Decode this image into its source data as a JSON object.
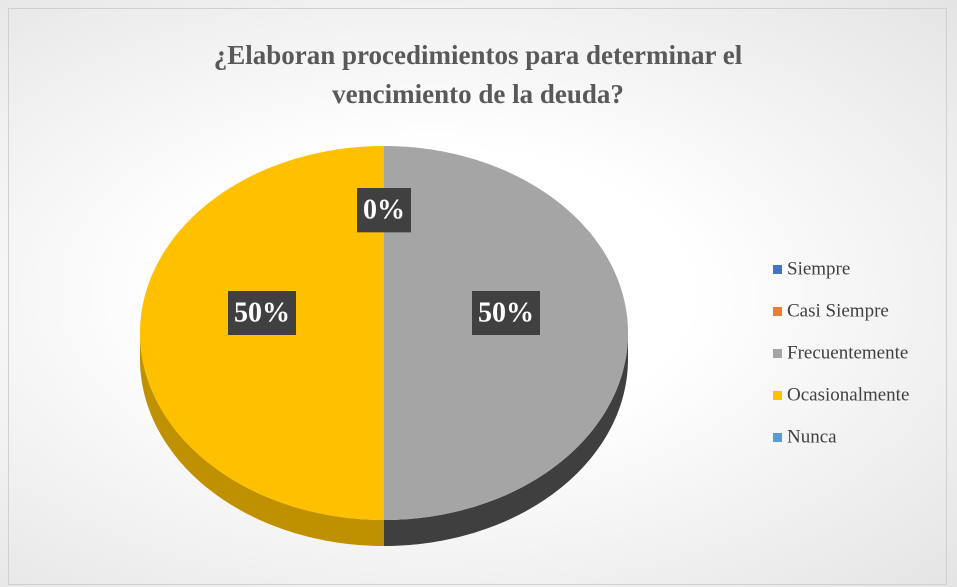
{
  "chart_data": {
    "type": "pie3d",
    "title": "¿Elaboran procedimientos para determinar el vencimiento de la deuda?",
    "categories": [
      "Siempre",
      "Casi Siempre",
      "Frecuentemente",
      "Ocasionalmente",
      "Nunca"
    ],
    "values": [
      0,
      0,
      50,
      50,
      0
    ],
    "value_labels": [
      "0%",
      "0%",
      "50%",
      "50%",
      "0%"
    ],
    "colors": [
      "#4472c4",
      "#ed7d31",
      "#a5a5a5",
      "#ffc000",
      "#5b9bd5"
    ],
    "legend": "right"
  }
}
